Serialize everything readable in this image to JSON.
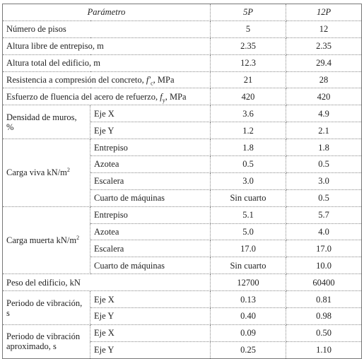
{
  "table": {
    "header": [
      "Parámetro",
      "5P",
      "12P"
    ],
    "rows": [
      {
        "label": "Número de pisos",
        "values": [
          "5",
          "12"
        ]
      },
      {
        "label": "Altura libre de entrepiso, m",
        "values": [
          "2.35",
          "2.35"
        ]
      },
      {
        "label": "Altura total del edificio, m",
        "values": [
          "12.3",
          "29.4"
        ]
      },
      {
        "label": {
          "text": "Resistencia a compresión del concreto, ",
          "symbol": "f′",
          "sub": "c",
          "after": ", MPa"
        },
        "values": [
          "21",
          "28"
        ]
      },
      {
        "label": {
          "text": "Esfuerzo de fluencia del acero de refuerzo, ",
          "symbol": "f",
          "sub": "y",
          "after": ", MPa"
        },
        "values": [
          "420",
          "420"
        ]
      },
      {
        "label": "Densidad de muros, %",
        "items": [
          {
            "label": "Eje X",
            "values": [
              "3.6",
              "4.9"
            ]
          },
          {
            "label": "Eje Y",
            "values": [
              "1.2",
              "2.1"
            ]
          }
        ]
      },
      {
        "label": {
          "text": "Carga viva kN/m",
          "sup": "2"
        },
        "items": [
          {
            "label": "Entrepiso",
            "values": [
              "1.8",
              "1.8"
            ]
          },
          {
            "label": "Azotea",
            "values": [
              "0.5",
              "0.5"
            ]
          },
          {
            "label": "Escalera",
            "values": [
              "3.0",
              "3.0"
            ]
          },
          {
            "label": "Cuarto de máquinas",
            "values": [
              "Sin cuarto",
              "0.5"
            ]
          }
        ]
      },
      {
        "label": {
          "text": "Carga muerta kN/m",
          "sup": "2"
        },
        "items": [
          {
            "label": "Entrepiso",
            "values": [
              "5.1",
              "5.7"
            ]
          },
          {
            "label": "Azotea",
            "values": [
              "5.0",
              "4.0"
            ]
          },
          {
            "label": "Escalera",
            "values": [
              "17.0",
              "17.0"
            ]
          },
          {
            "label": "Cuarto de máquinas",
            "values": [
              "Sin cuarto",
              "10.0"
            ]
          }
        ]
      },
      {
        "label": "Peso del edificio, kN",
        "values": [
          "12700",
          "60400"
        ]
      },
      {
        "label": "Periodo de vibración, s",
        "items": [
          {
            "label": "Eje X",
            "values": [
              "0.13",
              "0.81"
            ]
          },
          {
            "label": "Eje Y",
            "values": [
              "0.40",
              "0.98"
            ]
          }
        ]
      },
      {
        "label": "Periodo de vibración aproximado, s",
        "items": [
          {
            "label": "Eje X",
            "values": [
              "0.09",
              "0.50"
            ]
          },
          {
            "label": "Eje Y",
            "values": [
              "0.25",
              "1.10"
            ]
          }
        ]
      }
    ]
  }
}
